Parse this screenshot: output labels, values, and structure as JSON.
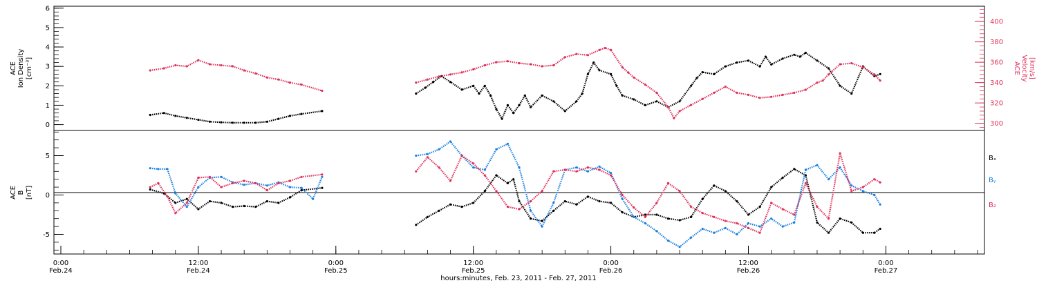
{
  "chart_data": [
    {
      "type": "scatter",
      "panel": "top",
      "ylabel_left": [
        "ACE",
        "Ion Density",
        "[cm⁻³]"
      ],
      "ylabel_right": [
        "ACE",
        "Velocity",
        "[km/s]"
      ],
      "ylim_left": [
        -0.3,
        6.1
      ],
      "yticks_left": [
        "0",
        "1",
        "2",
        "3",
        "4",
        "5",
        "6"
      ],
      "ylim_right": [
        293,
        415
      ],
      "yticks_right": [
        "300",
        "320",
        "340",
        "360",
        "380",
        "400"
      ],
      "colors": {
        "density": "#000000",
        "velocity": "#e0305a"
      },
      "series": [
        {
          "key": "density",
          "axis": "left",
          "segments": [
            {
              "x": [
                7.8,
                9,
                10,
                11,
                12,
                13,
                14,
                15,
                16,
                17,
                18,
                19,
                20,
                21,
                22.8
              ],
              "y": [
                0.5,
                0.6,
                0.45,
                0.35,
                0.25,
                0.15,
                0.12,
                0.1,
                0.1,
                0.1,
                0.15,
                0.3,
                0.45,
                0.55,
                0.7
              ]
            },
            {
              "x": [
                31,
                31.8,
                32.5,
                33.2,
                34,
                35,
                36,
                36.5,
                37,
                37.5,
                38,
                38.5,
                39,
                39.5,
                40,
                40.5,
                41,
                42,
                43,
                44,
                45,
                45.5,
                46,
                46.5,
                47,
                48,
                48.5,
                49,
                50,
                51,
                52,
                53,
                54,
                55,
                55.5,
                56,
                57,
                58,
                59,
                60,
                61,
                61.5,
                62,
                63,
                64,
                64.5,
                65,
                66,
                67,
                68,
                69,
                70,
                71,
                71.5
              ],
              "y": [
                1.6,
                1.9,
                2.2,
                2.5,
                2.2,
                1.8,
                2.0,
                1.6,
                2.0,
                1.5,
                0.8,
                0.3,
                1.0,
                0.6,
                1.0,
                1.5,
                0.9,
                1.5,
                1.2,
                0.7,
                1.2,
                1.6,
                2.6,
                3.2,
                2.8,
                2.6,
                2.0,
                1.5,
                1.3,
                1.0,
                1.2,
                0.9,
                1.2,
                2.0,
                2.4,
                2.7,
                2.6,
                3.0,
                3.2,
                3.3,
                3.0,
                3.5,
                3.1,
                3.4,
                3.6,
                3.5,
                3.7,
                3.3,
                2.9,
                2.0,
                1.6,
                3.0,
                2.5,
                2.6
              ]
            }
          ]
        },
        {
          "key": "velocity",
          "axis": "right",
          "segments": [
            {
              "x": [
                7.8,
                9,
                10,
                11,
                12,
                13,
                14,
                15,
                16,
                17,
                18,
                19,
                20,
                21,
                22.8
              ],
              "y": [
                352,
                354,
                357,
                356,
                362,
                358,
                357,
                356,
                352,
                349,
                345,
                343,
                340,
                338,
                332
              ]
            },
            {
              "x": [
                31,
                32,
                33,
                34,
                35,
                36,
                37,
                38,
                39,
                40,
                41,
                42,
                43,
                44,
                45,
                46,
                47,
                47.5,
                48,
                49,
                49.5,
                50,
                51,
                52,
                53,
                53.5,
                54,
                55,
                56,
                57,
                58,
                59,
                60,
                61,
                62,
                63,
                64,
                65,
                66,
                66.5,
                67,
                68,
                69,
                70,
                71,
                71.5
              ],
              "y": [
                340,
                343,
                346,
                348,
                350,
                353,
                357,
                360,
                361,
                359,
                358,
                356,
                357,
                365,
                368,
                367,
                372,
                374,
                372,
                355,
                350,
                345,
                338,
                330,
                316,
                305,
                312,
                318,
                324,
                330,
                336,
                330,
                328,
                325,
                326,
                328,
                330,
                333,
                340,
                342,
                348,
                358,
                359,
                355,
                348,
                342
              ]
            }
          ]
        }
      ]
    },
    {
      "type": "scatter",
      "panel": "bottom",
      "ylabel": [
        "ACE",
        "B",
        "[nT]"
      ],
      "ylim": [
        -7.5,
        8.2
      ],
      "yticks": [
        "-5",
        "0",
        "5"
      ],
      "zero_line": true,
      "legend": [
        "Bₓ",
        "Bᵧ",
        "B₂"
      ],
      "colors": {
        "bx": "#000000",
        "by": "#1a7fe0",
        "bz": "#e0305a"
      },
      "series": [
        {
          "key": "bx",
          "segments": [
            {
              "x": [
                7.8,
                9,
                10,
                11,
                12,
                13,
                14,
                15,
                16,
                17,
                18,
                19,
                20,
                21,
                22.8
              ],
              "y": [
                0.7,
                0.2,
                -1.0,
                -0.5,
                -1.8,
                -0.8,
                -1.0,
                -1.5,
                -1.4,
                -1.5,
                -0.8,
                -1.0,
                -0.3,
                0.6,
                0.9
              ]
            },
            {
              "x": [
                31,
                32,
                33,
                34,
                35,
                36,
                37,
                38,
                39,
                39.5,
                40,
                41,
                42,
                43,
                44,
                45,
                46,
                47,
                48,
                49,
                50,
                51,
                52,
                53,
                54,
                55,
                56,
                57,
                58,
                59,
                60,
                61,
                62,
                63,
                64,
                65,
                66,
                67,
                68,
                69,
                70,
                71,
                71.5
              ],
              "y": [
                -3.8,
                -2.8,
                -2.0,
                -1.2,
                -1.5,
                -1.0,
                0.5,
                2.5,
                1.5,
                2.0,
                -0.8,
                -3.0,
                -3.3,
                -2.0,
                -0.8,
                -1.2,
                -0.2,
                -0.8,
                -1.0,
                -2.2,
                -2.8,
                -2.5,
                -2.5,
                -3.0,
                -3.2,
                -2.8,
                -0.5,
                1.2,
                0.5,
                -0.8,
                -2.5,
                -1.5,
                1.0,
                2.2,
                3.3,
                2.5,
                -3.5,
                -4.8,
                -3.0,
                -3.5,
                -4.8,
                -4.8,
                -4.3
              ]
            }
          ]
        },
        {
          "key": "by",
          "segments": [
            {
              "x": [
                7.8,
                8.5,
                9.3,
                10,
                11,
                12,
                13,
                14,
                15,
                16,
                17,
                18,
                19,
                20,
                21,
                22,
                22.8
              ],
              "y": [
                3.4,
                3.3,
                3.3,
                0.2,
                -1.5,
                1.0,
                2.2,
                2.3,
                1.6,
                1.3,
                1.5,
                1.2,
                1.6,
                1.0,
                0.9,
                -0.5,
                2.3
              ]
            },
            {
              "x": [
                31,
                32,
                33,
                34,
                35,
                36,
                37,
                38,
                39,
                40,
                41,
                42,
                43,
                44,
                45,
                46,
                47,
                48,
                49,
                50,
                51,
                52,
                53,
                54,
                55,
                56,
                57,
                58,
                59,
                60,
                61,
                62,
                63,
                64,
                65,
                66,
                67,
                68,
                69,
                70,
                71,
                71.5
              ],
              "y": [
                5.0,
                5.2,
                5.8,
                6.8,
                5.0,
                3.5,
                3.2,
                5.8,
                6.5,
                3.5,
                -2.0,
                -4.0,
                -1.0,
                3.2,
                3.5,
                3.0,
                3.6,
                2.8,
                -0.5,
                -2.8,
                -3.6,
                -4.6,
                -5.8,
                -6.6,
                -5.4,
                -4.3,
                -4.8,
                -4.2,
                -5.0,
                -3.6,
                -4.0,
                -3.0,
                -4.0,
                -3.5,
                3.2,
                3.8,
                2.0,
                3.5,
                1.2,
                0.5,
                0.0,
                -1.2
              ]
            }
          ]
        },
        {
          "key": "bz",
          "segments": [
            {
              "x": [
                7.8,
                8.5,
                9.3,
                10,
                11,
                12,
                13,
                14,
                15,
                16,
                17,
                18,
                19,
                20,
                21,
                22.8
              ],
              "y": [
                1.0,
                1.5,
                -0.2,
                -2.3,
                -1.0,
                2.2,
                2.3,
                1.0,
                1.5,
                1.8,
                1.5,
                0.6,
                1.5,
                1.8,
                2.3,
                2.6
              ]
            },
            {
              "x": [
                31,
                32,
                33,
                34,
                35,
                36,
                37,
                38,
                39,
                40,
                41,
                42,
                43,
                44,
                45,
                46,
                47,
                48,
                49,
                50,
                51,
                52,
                53,
                54,
                55,
                56,
                57,
                58,
                59,
                60,
                61,
                62,
                63,
                64,
                65,
                66,
                67,
                68,
                69,
                70,
                71,
                71.5
              ],
              "y": [
                3.0,
                4.8,
                3.5,
                1.8,
                5.0,
                4.0,
                2.5,
                0.5,
                -1.5,
                -1.8,
                -0.8,
                0.5,
                3.0,
                3.2,
                3.0,
                3.5,
                3.2,
                2.5,
                0.0,
                -1.6,
                -2.8,
                -1.0,
                1.5,
                0.5,
                -1.5,
                -2.3,
                -2.8,
                -3.3,
                -3.6,
                -4.2,
                -4.8,
                -1.0,
                -1.8,
                -2.5,
                1.5,
                -1.5,
                -3.0,
                5.3,
                0.5,
                1.0,
                2.0,
                1.6
              ]
            }
          ]
        }
      ]
    },
    {
      "type": "axis",
      "panel": "time",
      "xlim": [
        0,
        80
      ],
      "xticks": [
        {
          "x": 0,
          "line1": "0:00",
          "line2": "Feb.24"
        },
        {
          "x": 12,
          "line1": "12:00",
          "line2": "Feb.24"
        },
        {
          "x": 24,
          "line1": "0:00",
          "line2": "Feb.25"
        },
        {
          "x": 36,
          "line1": "12:00",
          "line2": "Feb.25"
        },
        {
          "x": 48,
          "line1": "0:00",
          "line2": "Feb.26"
        },
        {
          "x": 60,
          "line1": "12:00",
          "line2": "Feb.26"
        },
        {
          "x": 72,
          "line1": "0:00",
          "line2": "Feb.27"
        }
      ],
      "xlabel": "hours:minutes, Feb. 23, 2011 - Feb. 27, 2011"
    }
  ]
}
